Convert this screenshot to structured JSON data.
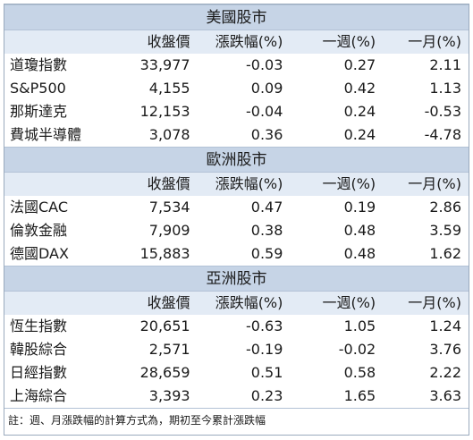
{
  "sections": [
    {
      "title": "美國股市",
      "rows": [
        {
          "name": "道瓊指數",
          "close": "33,977",
          "chg": "-0.03",
          "wk": "0.27",
          "mo": "2.11"
        },
        {
          "name": "S&P500",
          "close": "4,155",
          "chg": "0.09",
          "wk": "0.42",
          "mo": "1.13"
        },
        {
          "name": "那斯達克",
          "close": "12,153",
          "chg": "-0.04",
          "wk": "0.24",
          "mo": "-0.53"
        },
        {
          "name": "費城半導體",
          "close": "3,078",
          "chg": "0.36",
          "wk": "0.24",
          "mo": "-4.78"
        }
      ]
    },
    {
      "title": "歐洲股市",
      "rows": [
        {
          "name": "法國CAC",
          "close": "7,534",
          "chg": "0.47",
          "wk": "0.19",
          "mo": "2.86"
        },
        {
          "name": "倫敦金融",
          "close": "7,909",
          "chg": "0.38",
          "wk": "0.48",
          "mo": "3.59"
        },
        {
          "name": "德國DAX",
          "close": "15,883",
          "chg": "0.59",
          "wk": "0.48",
          "mo": "1.62"
        }
      ]
    },
    {
      "title": "亞洲股市",
      "rows": [
        {
          "name": "恆生指數",
          "close": "20,651",
          "chg": "-0.63",
          "wk": "1.05",
          "mo": "1.24"
        },
        {
          "name": "韓股綜合",
          "close": "2,571",
          "chg": "-0.19",
          "wk": "-0.02",
          "mo": "3.76"
        },
        {
          "name": "日經指數",
          "close": "28,659",
          "chg": "0.51",
          "wk": "0.58",
          "mo": "2.22"
        },
        {
          "name": "上海綜合",
          "close": "3,393",
          "chg": "0.23",
          "wk": "1.65",
          "mo": "3.63"
        }
      ]
    }
  ],
  "headers": {
    "name": "",
    "close": "收盤價",
    "chg": "漲跌幅(%)",
    "wk": "一週(%)",
    "mo": "一月(%)"
  },
  "note": "註：週、月漲跌幅的計算方式為，期初至今累計漲跌幅"
}
